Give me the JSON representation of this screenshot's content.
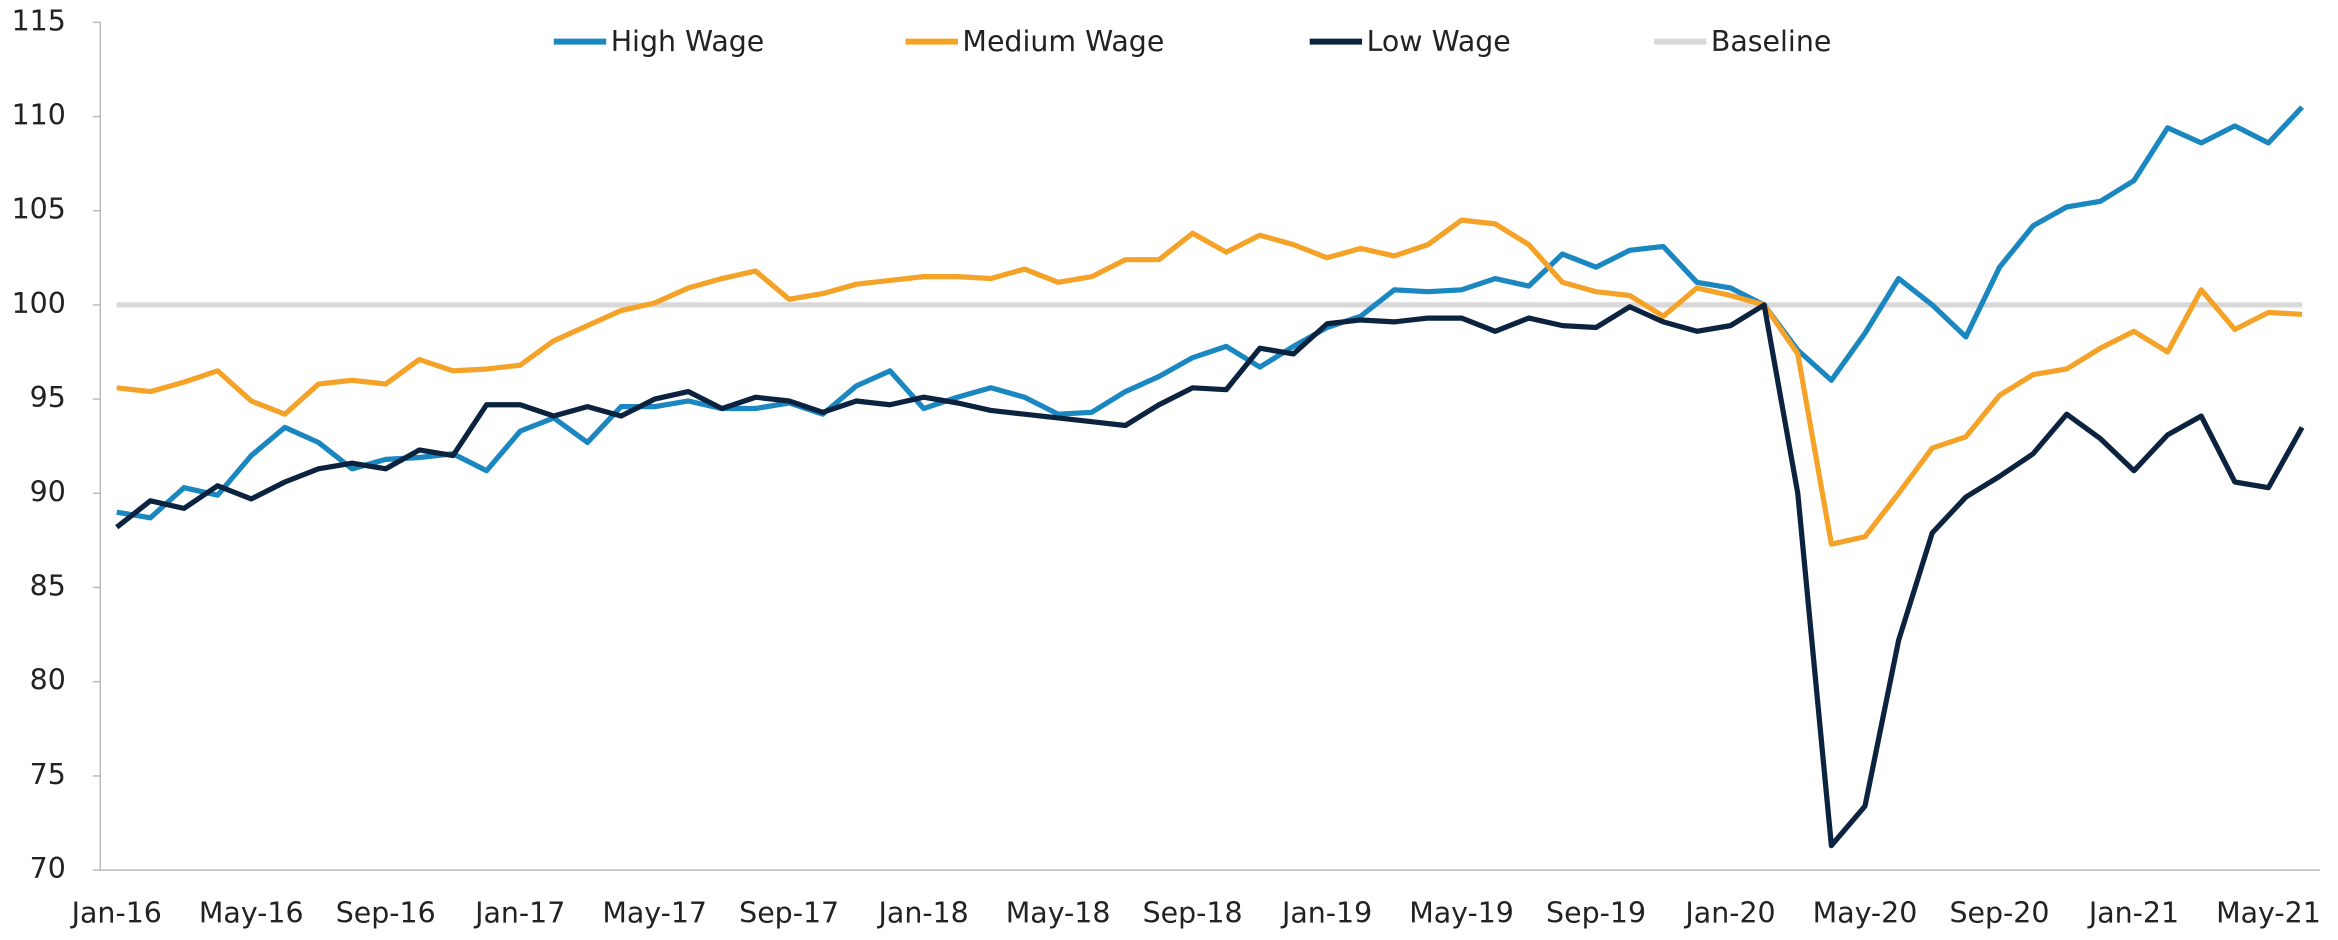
{
  "chart_data": {
    "type": "line",
    "categories": [
      "Jan-16",
      null,
      null,
      null,
      "May-16",
      null,
      null,
      null,
      "Sep-16",
      null,
      null,
      null,
      "Jan-17",
      null,
      null,
      null,
      "May-17",
      null,
      null,
      null,
      "Sep-17",
      null,
      null,
      null,
      "Jan-18",
      null,
      null,
      null,
      "May-18",
      null,
      null,
      null,
      "Sep-18",
      null,
      null,
      null,
      "Jan-19",
      null,
      null,
      null,
      "May-19",
      null,
      null,
      null,
      "Sep-19",
      null,
      null,
      null,
      "Jan-20",
      null,
      null,
      null,
      "May-20",
      null,
      null,
      null,
      "Sep-20",
      null,
      null,
      null,
      "Jan-21",
      null,
      null,
      null,
      "May-21",
      null
    ],
    "ylim": [
      70,
      115
    ],
    "yticks": [
      70,
      75,
      80,
      85,
      90,
      95,
      100,
      105,
      110,
      115
    ],
    "series": [
      {
        "name": "High Wage",
        "color": "#1a87c0",
        "values": [
          89.0,
          88.7,
          90.3,
          89.9,
          92.0,
          93.5,
          92.7,
          91.3,
          91.8,
          91.9,
          92.1,
          91.2,
          93.3,
          94.0,
          92.7,
          94.6,
          94.6,
          94.9,
          94.5,
          94.5,
          94.8,
          94.2,
          95.7,
          96.5,
          94.5,
          95.1,
          95.6,
          95.1,
          94.2,
          94.3,
          95.4,
          96.2,
          97.2,
          97.8,
          96.7,
          97.8,
          98.8,
          99.4,
          100.8,
          100.7,
          100.8,
          101.4,
          101.0,
          102.7,
          102.0,
          102.9,
          103.1,
          101.2,
          100.9,
          100.0,
          97.6,
          96.0,
          98.5,
          101.4,
          100.0,
          98.3,
          102.0,
          104.2,
          105.2,
          105.5,
          106.6,
          109.4,
          108.6,
          109.5,
          108.6,
          110.5
        ]
      },
      {
        "name": "Medium Wage",
        "color": "#f5a328",
        "values": [
          95.6,
          95.4,
          95.9,
          96.5,
          94.9,
          94.2,
          95.8,
          96.0,
          95.8,
          97.1,
          96.5,
          96.6,
          96.8,
          98.1,
          98.9,
          99.7,
          100.1,
          100.9,
          101.4,
          101.8,
          100.3,
          100.6,
          101.1,
          101.3,
          101.5,
          101.5,
          101.4,
          101.9,
          101.2,
          101.5,
          102.4,
          102.4,
          103.8,
          102.8,
          103.7,
          103.2,
          102.5,
          103.0,
          102.6,
          103.2,
          104.5,
          104.3,
          103.2,
          101.2,
          100.7,
          100.5,
          99.4,
          100.9,
          100.5,
          100.0,
          97.4,
          87.3,
          87.7,
          90.0,
          92.4,
          93.0,
          95.2,
          96.3,
          96.6,
          97.7,
          98.6,
          97.5,
          100.8,
          98.7,
          99.6,
          99.5
        ]
      },
      {
        "name": "Low Wage",
        "color": "#0c2340",
        "values": [
          88.2,
          89.6,
          89.2,
          90.4,
          89.7,
          90.6,
          91.3,
          91.6,
          91.3,
          92.3,
          92.0,
          94.7,
          94.7,
          94.1,
          94.6,
          94.1,
          95.0,
          95.4,
          94.5,
          95.1,
          94.9,
          94.3,
          94.9,
          94.7,
          95.1,
          94.8,
          94.4,
          94.2,
          94.0,
          93.8,
          93.6,
          94.7,
          95.6,
          95.5,
          97.7,
          97.4,
          99.0,
          99.2,
          99.1,
          99.3,
          99.3,
          98.6,
          99.3,
          98.9,
          98.8,
          99.9,
          99.1,
          98.6,
          98.9,
          100.0,
          90.0,
          71.3,
          73.4,
          82.2,
          87.9,
          89.8,
          90.9,
          92.1,
          94.2,
          92.9,
          91.2,
          93.1,
          94.1,
          90.6,
          90.3,
          93.5
        ]
      },
      {
        "name": "Baseline",
        "color": "#d9d9d9",
        "values": [
          100,
          100,
          100,
          100,
          100,
          100,
          100,
          100,
          100,
          100,
          100,
          100,
          100,
          100,
          100,
          100,
          100,
          100,
          100,
          100,
          100,
          100,
          100,
          100,
          100,
          100,
          100,
          100,
          100,
          100,
          100,
          100,
          100,
          100,
          100,
          100,
          100,
          100,
          100,
          100,
          100,
          100,
          100,
          100,
          100,
          100,
          100,
          100,
          100,
          100,
          100,
          100,
          100,
          100,
          100,
          100,
          100,
          100,
          100,
          100,
          100,
          100,
          100,
          100,
          100,
          100
        ]
      }
    ]
  }
}
